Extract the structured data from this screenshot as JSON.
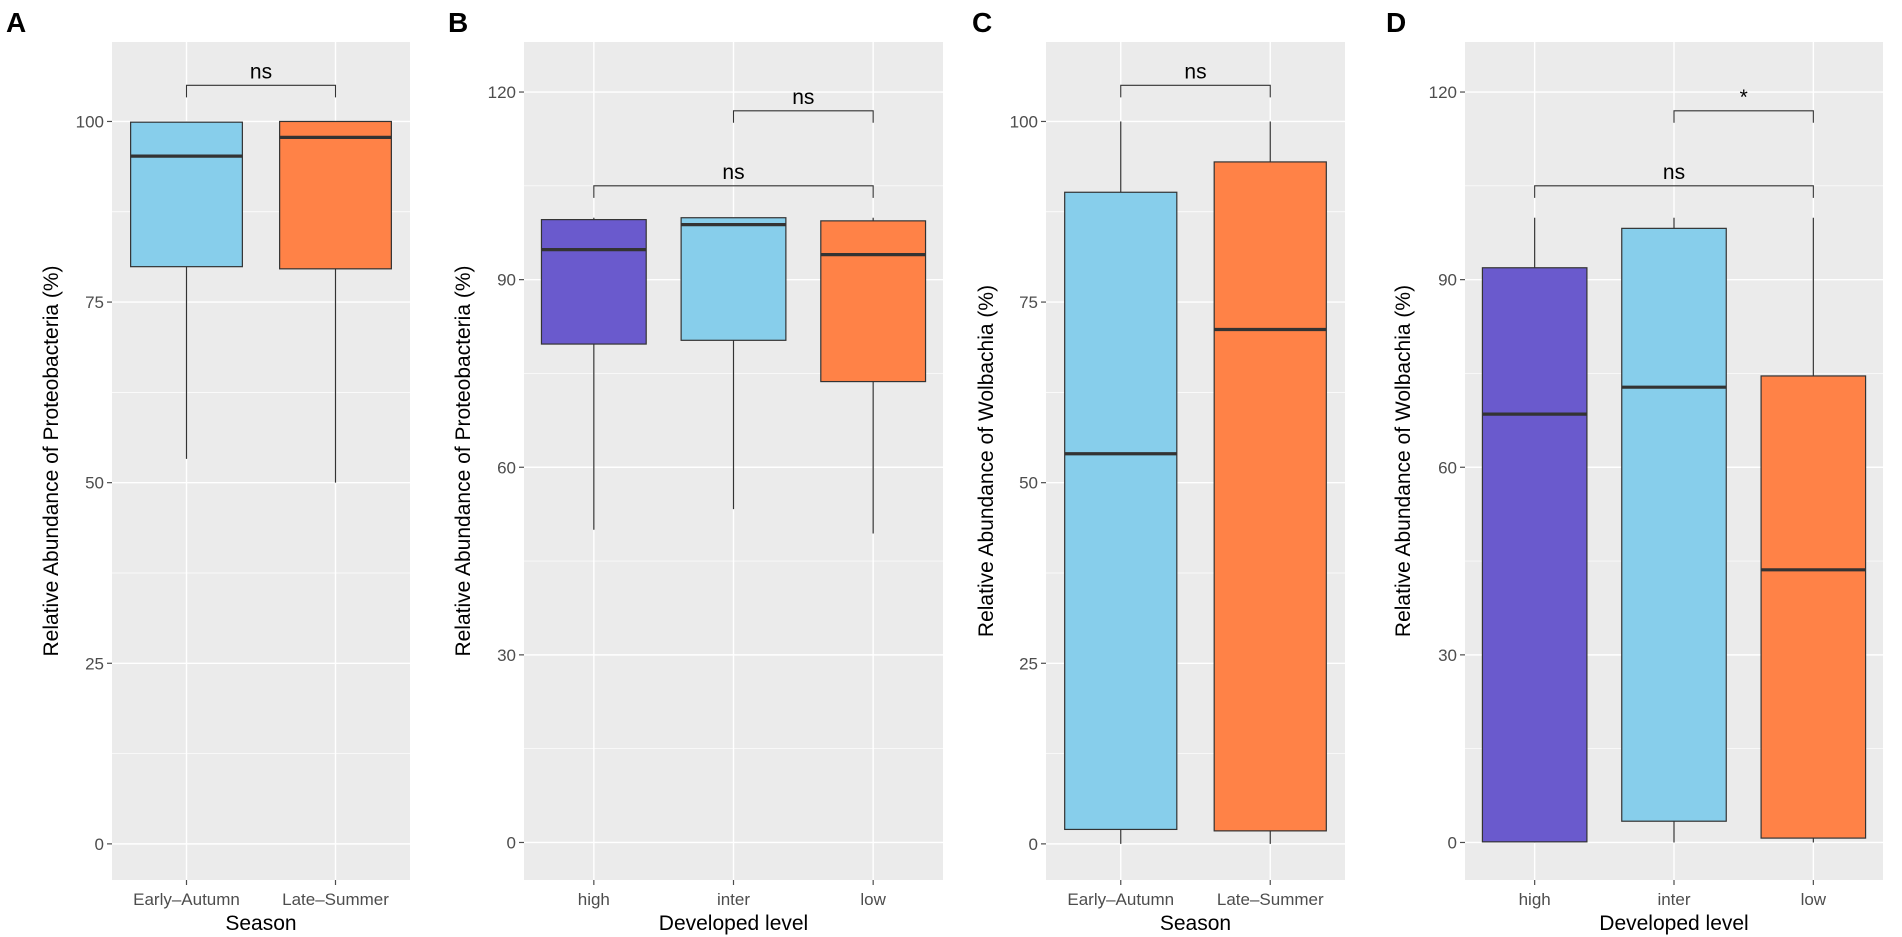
{
  "chart_data": [
    {
      "panel": "A",
      "type": "box",
      "xlabel": "Season",
      "ylabel": "Relative Abundance of Proteobacteria (%)",
      "ylim": [
        -5,
        111
      ],
      "yticks": [
        0,
        25,
        50,
        75,
        100
      ],
      "categories": [
        "Early–Autumn",
        "Late–Summer"
      ],
      "boxes": [
        {
          "category": "Early–Autumn",
          "min": 53.3,
          "q1": 79.9,
          "median": 95.2,
          "q3": 99.9,
          "max": 99.9,
          "color": "#87CEEB"
        },
        {
          "category": "Late–Summer",
          "min": 50.0,
          "q1": 79.6,
          "median": 97.8,
          "q3": 100.0,
          "max": 100.0,
          "color": "#FF8247"
        }
      ],
      "comparisons": [
        {
          "from": 0,
          "to": 1,
          "y": 105,
          "label": "ns"
        }
      ]
    },
    {
      "panel": "B",
      "type": "box",
      "xlabel": "Developed level",
      "ylabel": "Relative Abundance of Proteobacteria (%)",
      "ylim": [
        -6,
        128
      ],
      "yticks": [
        0,
        30,
        60,
        90,
        120
      ],
      "categories": [
        "high",
        "inter",
        "low"
      ],
      "boxes": [
        {
          "category": "high",
          "min": 50.0,
          "q1": 79.7,
          "median": 94.8,
          "q3": 99.6,
          "max": 99.9,
          "color": "#6A5ACD"
        },
        {
          "category": "inter",
          "min": 53.3,
          "q1": 80.3,
          "median": 98.8,
          "q3": 99.9,
          "max": 99.9,
          "color": "#87CEEB"
        },
        {
          "category": "low",
          "min": 49.4,
          "q1": 73.7,
          "median": 94.0,
          "q3": 99.4,
          "max": 99.9,
          "color": "#FF8247"
        }
      ],
      "comparisons": [
        {
          "from": 0,
          "to": 2,
          "y": 105,
          "label": "ns"
        },
        {
          "from": 1,
          "to": 2,
          "y": 117,
          "label": "ns"
        }
      ]
    },
    {
      "panel": "C",
      "type": "box",
      "xlabel": "Season",
      "ylabel": "Relative Abundance of Wolbachia (%)",
      "ylim": [
        -5,
        111
      ],
      "yticks": [
        0,
        25,
        50,
        75,
        100
      ],
      "categories": [
        "Early–Autumn",
        "Late–Summer"
      ],
      "boxes": [
        {
          "category": "Early–Autumn",
          "min": 0.0,
          "q1": 2.0,
          "median": 54.0,
          "q3": 90.2,
          "max": 100.0,
          "color": "#87CEEB"
        },
        {
          "category": "Late–Summer",
          "min": 0.0,
          "q1": 1.8,
          "median": 71.2,
          "q3": 94.4,
          "max": 100.0,
          "color": "#FF8247"
        }
      ],
      "comparisons": [
        {
          "from": 0,
          "to": 1,
          "y": 105,
          "label": "ns"
        }
      ]
    },
    {
      "panel": "D",
      "type": "box",
      "xlabel": "Developed level",
      "ylabel": "Relative Abundance of Wolbachia (%)",
      "ylim": [
        -6,
        128
      ],
      "yticks": [
        0,
        30,
        60,
        90,
        120
      ],
      "categories": [
        "high",
        "inter",
        "low"
      ],
      "boxes": [
        {
          "category": "high",
          "min": 0.0,
          "q1": 0.1,
          "median": 68.5,
          "q3": 91.9,
          "max": 99.9,
          "color": "#6A5ACD"
        },
        {
          "category": "inter",
          "min": 0.0,
          "q1": 3.4,
          "median": 72.8,
          "q3": 98.2,
          "max": 99.9,
          "color": "#87CEEB"
        },
        {
          "category": "low",
          "min": 0.0,
          "q1": 0.7,
          "median": 43.6,
          "q3": 74.6,
          "max": 99.9,
          "color": "#FF8247"
        }
      ],
      "comparisons": [
        {
          "from": 0,
          "to": 2,
          "y": 105,
          "label": "ns"
        },
        {
          "from": 1,
          "to": 2,
          "y": 117,
          "label": "*"
        }
      ]
    }
  ],
  "style": {
    "panel_background": "#EBEBEB",
    "gridline_color": "#FFFFFF",
    "box_outline": "#333333",
    "median_color": "#333333",
    "tick_color": "#4D4D4D"
  }
}
